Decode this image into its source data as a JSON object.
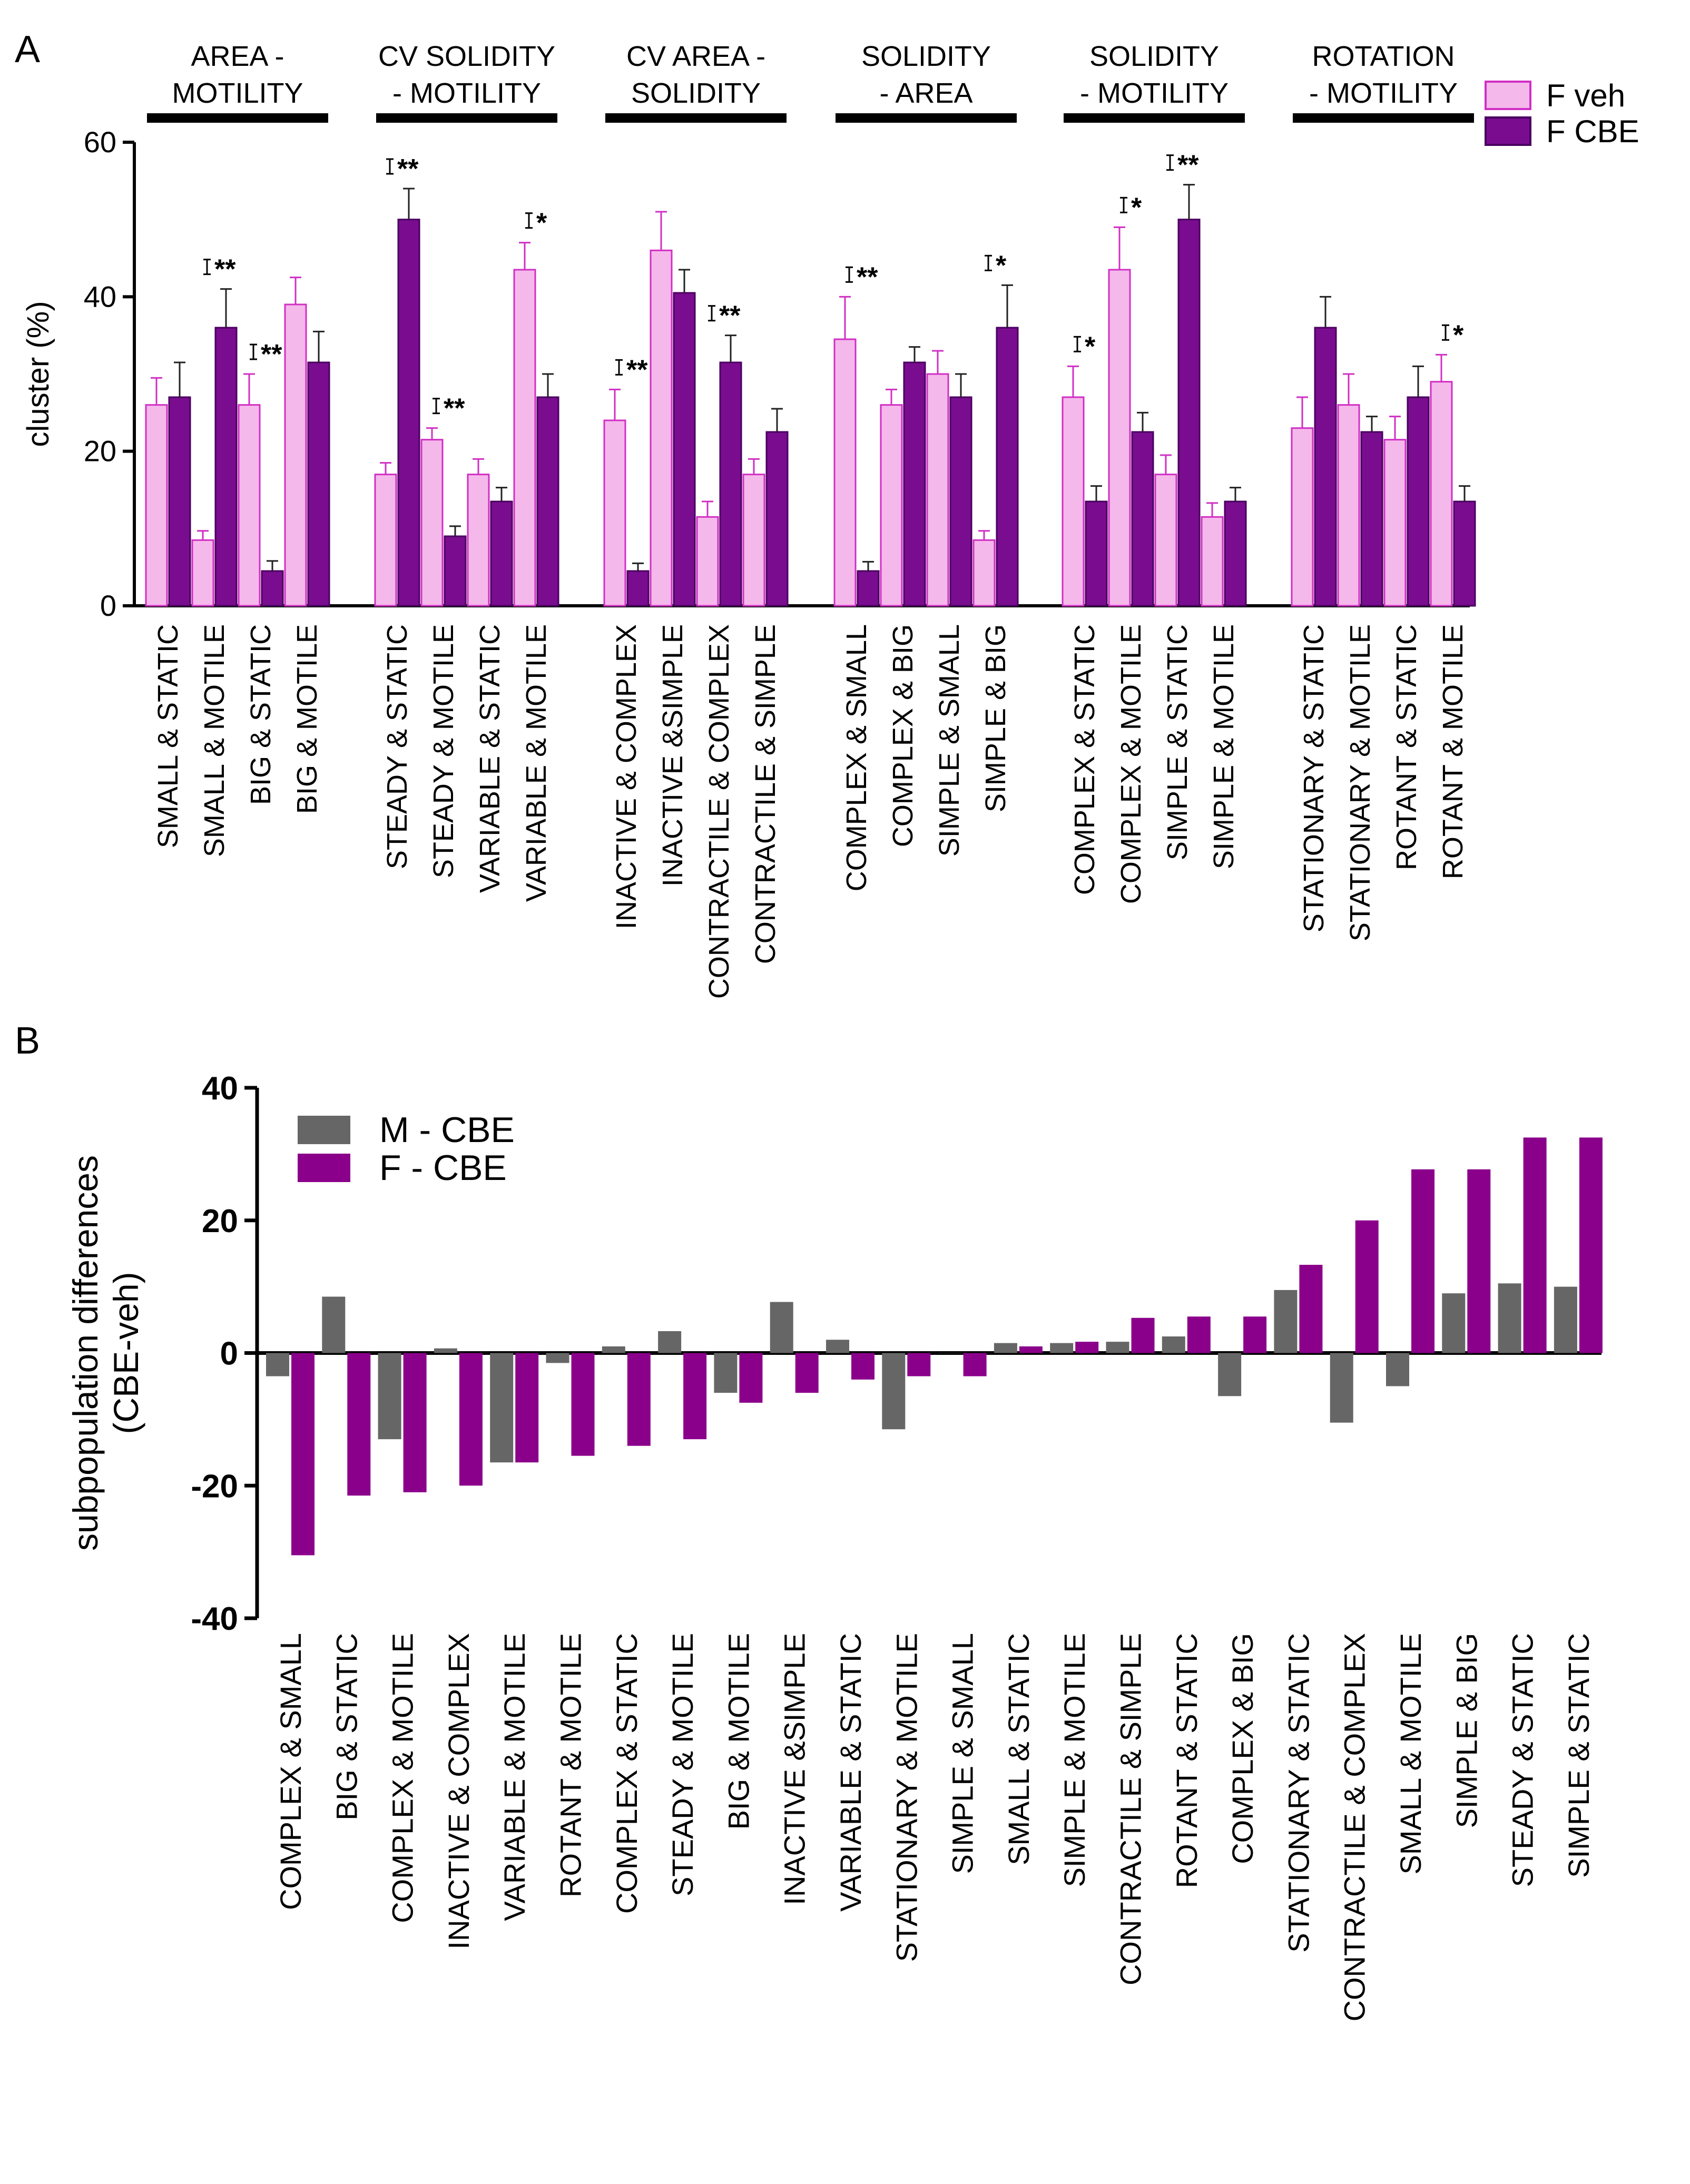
{
  "panels": {
    "a": "A",
    "b": "B"
  },
  "chart_data": [
    {
      "type": "bar",
      "title": "",
      "ylabel": "cluster (%)",
      "ylim": [
        0,
        60
      ],
      "yticks": [
        "0",
        "20",
        "40",
        "60"
      ],
      "legend": {
        "position": "top-right",
        "entries": [
          "F veh",
          "F CBE"
        ]
      },
      "colors": {
        "veh_fill": "#f5b8eb",
        "veh_edge": "#d12fc4",
        "cbe_fill": "#7a0d8f",
        "cbe_edge": "#4a0060"
      },
      "groups": [
        {
          "title": [
            "AREA -",
            "MOTILITY"
          ],
          "categories": [
            "SMALL & STATIC",
            "SMALL & MOTILE",
            "BIG & STATIC",
            "BIG & MOTILE"
          ],
          "veh": [
            26,
            8.5,
            26,
            39
          ],
          "veh_err": [
            3.5,
            1.2,
            4,
            3.5
          ],
          "cbe": [
            27,
            36,
            4.5,
            31.5
          ],
          "cbe_err": [
            4.5,
            5,
            1.3,
            4
          ],
          "sig": [
            "",
            "**",
            "**",
            ""
          ]
        },
        {
          "title": [
            "CV SOLIDITY",
            "- MOTILITY"
          ],
          "categories": [
            "STEADY & STATIC",
            "STEADY & MOTILE",
            "VARIABLE & STATIC",
            "VARIABLE & MOTILE"
          ],
          "veh": [
            17,
            21.5,
            17,
            43.5
          ],
          "veh_err": [
            1.5,
            1.5,
            2,
            3.5
          ],
          "cbe": [
            50,
            9,
            13.5,
            27
          ],
          "cbe_err": [
            4,
            1.3,
            1.8,
            3
          ],
          "sig": [
            "**",
            "**",
            "",
            "*"
          ]
        },
        {
          "title": [
            "CV AREA -",
            "SOLIDITY"
          ],
          "categories": [
            "INACTIVE & COMPLEX",
            "INACTIVE &SIMPLE",
            "CONTRACTILE & COMPLEX",
            "CONTRACTILE & SIMPLE"
          ],
          "veh": [
            24,
            46,
            11.5,
            17
          ],
          "veh_err": [
            4,
            5,
            2,
            2
          ],
          "cbe": [
            4.5,
            40.5,
            31.5,
            22.5
          ],
          "cbe_err": [
            1,
            3,
            3.5,
            3
          ],
          "sig": [
            "**",
            "",
            "**",
            ""
          ]
        },
        {
          "title": [
            "SOLIDITY",
            "- AREA"
          ],
          "categories": [
            "COMPLEX & SMALL",
            "COMPLEX & BIG",
            "SIMPLE & SMALL",
            "SIMPLE & BIG"
          ],
          "veh": [
            34.5,
            26,
            30,
            8.5
          ],
          "veh_err": [
            5.5,
            2,
            3,
            1.2
          ],
          "cbe": [
            4.5,
            31.5,
            27,
            36
          ],
          "cbe_err": [
            1.2,
            2,
            3,
            5.5
          ],
          "sig": [
            "**",
            "",
            "",
            "*"
          ]
        },
        {
          "title": [
            "SOLIDITY",
            "- MOTILITY"
          ],
          "categories": [
            "COMPLEX & STATIC",
            "COMPLEX & MOTILE",
            "SIMPLE & STATIC",
            "SIMPLE & MOTILE"
          ],
          "veh": [
            27,
            43.5,
            17,
            11.5
          ],
          "veh_err": [
            4,
            5.5,
            2.5,
            1.8
          ],
          "cbe": [
            13.5,
            22.5,
            50,
            13.5
          ],
          "cbe_err": [
            2,
            2.5,
            4.5,
            1.8
          ],
          "sig": [
            "*",
            "*",
            "**",
            ""
          ]
        },
        {
          "title": [
            "ROTATION",
            "- MOTILITY"
          ],
          "categories": [
            "STATIONARY & STATIC",
            "STATIONARY & MOTILE",
            "ROTANT & STATIC",
            "ROTANT & MOTILE"
          ],
          "veh": [
            23,
            26,
            21.5,
            29
          ],
          "veh_err": [
            4,
            4,
            3,
            3.5
          ],
          "cbe": [
            36,
            22.5,
            27,
            13.5
          ],
          "cbe_err": [
            4,
            2,
            4,
            2
          ],
          "sig": [
            "",
            "",
            "",
            "*"
          ]
        }
      ]
    },
    {
      "type": "bar",
      "title": "",
      "ylabel": [
        "subpopulation differences",
        "(CBE-veh)"
      ],
      "ylim": [
        -40,
        40
      ],
      "yticks": [
        "-40",
        "-20",
        "0",
        "20",
        "40"
      ],
      "legend": {
        "position": "top-left",
        "entries": [
          "M - CBE",
          "F - CBE"
        ]
      },
      "colors": {
        "m": "#666666",
        "f": "#8b008b"
      },
      "categories": [
        "COMPLEX & SMALL",
        "BIG & STATIC",
        "COMPLEX & MOTILE",
        "INACTIVE & COMPLEX",
        "VARIABLE & MOTILE",
        "ROTANT & MOTILE",
        "COMPLEX & STATIC",
        "STEADY & MOTILE",
        "BIG & MOTILE",
        "INACTIVE &SIMPLE",
        "VARIABLE & STATIC",
        "STATIONARY & MOTILE",
        "SIMPLE & SMALL",
        "SMALL & STATIC",
        "SIMPLE & MOTILE",
        "CONTRACTILE & SIMPLE",
        "ROTANT & STATIC",
        "COMPLEX & BIG",
        "STATIONARY & STATIC",
        "CONTRACTILE & COMPLEX",
        "SMALL & MOTILE",
        "SIMPLE & BIG",
        "STEADY & STATIC",
        "SIMPLE & STATIC"
      ],
      "series": [
        {
          "name": "M - CBE",
          "values": [
            -3.5,
            8.5,
            -13,
            0.7,
            -16.5,
            -1.5,
            1,
            3.3,
            -6,
            7.7,
            2,
            -11.5,
            0,
            1.5,
            1.5,
            1.7,
            2.5,
            -6.5,
            9.5,
            -10.5,
            -5,
            9,
            10.5,
            10
          ]
        },
        {
          "name": "F - CBE",
          "values": [
            -30.5,
            -21.5,
            -21,
            -20,
            -16.5,
            -15.5,
            -14,
            -13,
            -7.5,
            -6,
            -4,
            -3.5,
            -3.5,
            1,
            1.7,
            5.3,
            5.5,
            5.5,
            13.3,
            20,
            27.7,
            27.7,
            32.5,
            32.5
          ]
        }
      ]
    }
  ]
}
